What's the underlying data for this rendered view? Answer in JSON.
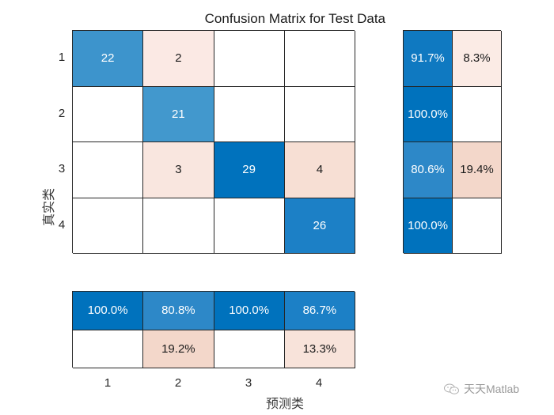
{
  "chart_data": {
    "type": "heatmap",
    "title": "Confusion Matrix for Test Data",
    "xlabel": "预测类",
    "ylabel": "真实类",
    "classes": [
      "1",
      "2",
      "3",
      "4"
    ],
    "matrix": [
      [
        22,
        2,
        null,
        null
      ],
      [
        null,
        21,
        null,
        null
      ],
      [
        null,
        3,
        29,
        4
      ],
      [
        null,
        null,
        null,
        26
      ]
    ],
    "row_summary": {
      "correct": [
        "91.7%",
        "100.0%",
        "80.6%",
        "100.0%"
      ],
      "incorrect": [
        "8.3%",
        "",
        "19.4%",
        ""
      ]
    },
    "column_summary": {
      "correct": [
        "100.0%",
        "80.8%",
        "100.0%",
        "86.7%"
      ],
      "incorrect": [
        "",
        "19.2%",
        "",
        "13.3%"
      ]
    },
    "colors": {
      "diag_darkest": "#0072bd",
      "diag_dark": "#1c80c6",
      "diag_mid": "#3d94cc",
      "diag_light": "#4a9ad0",
      "off_light": "#fbe9e4",
      "off_mid": "#f7dfd6",
      "off_strong": "#f2d4c7"
    }
  },
  "cells": [
    {
      "text": "22",
      "bg": "#3d94cc",
      "tone": "dark"
    },
    {
      "text": "2",
      "bg": "#fbe9e4",
      "tone": "light"
    },
    {
      "text": "",
      "bg": "#ffffff",
      "tone": "light"
    },
    {
      "text": "",
      "bg": "#ffffff",
      "tone": "light"
    },
    {
      "text": "",
      "bg": "#ffffff",
      "tone": "light"
    },
    {
      "text": "21",
      "bg": "#4298cd",
      "tone": "dark"
    },
    {
      "text": "",
      "bg": "#ffffff",
      "tone": "light"
    },
    {
      "text": "",
      "bg": "#ffffff",
      "tone": "light"
    },
    {
      "text": "",
      "bg": "#ffffff",
      "tone": "light"
    },
    {
      "text": "3",
      "bg": "#f9e6df",
      "tone": "light"
    },
    {
      "text": "29",
      "bg": "#0072bd",
      "tone": "dark"
    },
    {
      "text": "4",
      "bg": "#f7dfd4",
      "tone": "light"
    },
    {
      "text": "",
      "bg": "#ffffff",
      "tone": "light"
    },
    {
      "text": "",
      "bg": "#ffffff",
      "tone": "light"
    },
    {
      "text": "",
      "bg": "#ffffff",
      "tone": "light"
    },
    {
      "text": "26",
      "bg": "#1c80c6",
      "tone": "dark"
    }
  ],
  "row_cells": [
    {
      "text": "91.7%",
      "bg": "#0f79c1",
      "tone": "dark"
    },
    {
      "text": "8.3%",
      "bg": "#fbebe5",
      "tone": "light"
    },
    {
      "text": "100.0%",
      "bg": "#0072bd",
      "tone": "dark"
    },
    {
      "text": "",
      "bg": "#ffffff",
      "tone": "light"
    },
    {
      "text": "80.6%",
      "bg": "#2d88c8",
      "tone": "dark"
    },
    {
      "text": "19.4%",
      "bg": "#f3d7ca",
      "tone": "light"
    },
    {
      "text": "100.0%",
      "bg": "#0072bd",
      "tone": "dark"
    },
    {
      "text": "",
      "bg": "#ffffff",
      "tone": "light"
    }
  ],
  "col_cells": [
    {
      "text": "100.0%",
      "bg": "#0072bd",
      "tone": "dark"
    },
    {
      "text": "80.8%",
      "bg": "#2d88c8",
      "tone": "dark"
    },
    {
      "text": "100.0%",
      "bg": "#0072bd",
      "tone": "dark"
    },
    {
      "text": "86.7%",
      "bg": "#1c80c6",
      "tone": "dark"
    },
    {
      "text": "",
      "bg": "#ffffff",
      "tone": "light"
    },
    {
      "text": "19.2%",
      "bg": "#f3d7ca",
      "tone": "light"
    },
    {
      "text": "",
      "bg": "#ffffff",
      "tone": "light"
    },
    {
      "text": "13.3%",
      "bg": "#f8e3da",
      "tone": "light"
    }
  ],
  "watermark": {
    "text": "天天Matlab",
    "icon": "wechat-icon"
  }
}
